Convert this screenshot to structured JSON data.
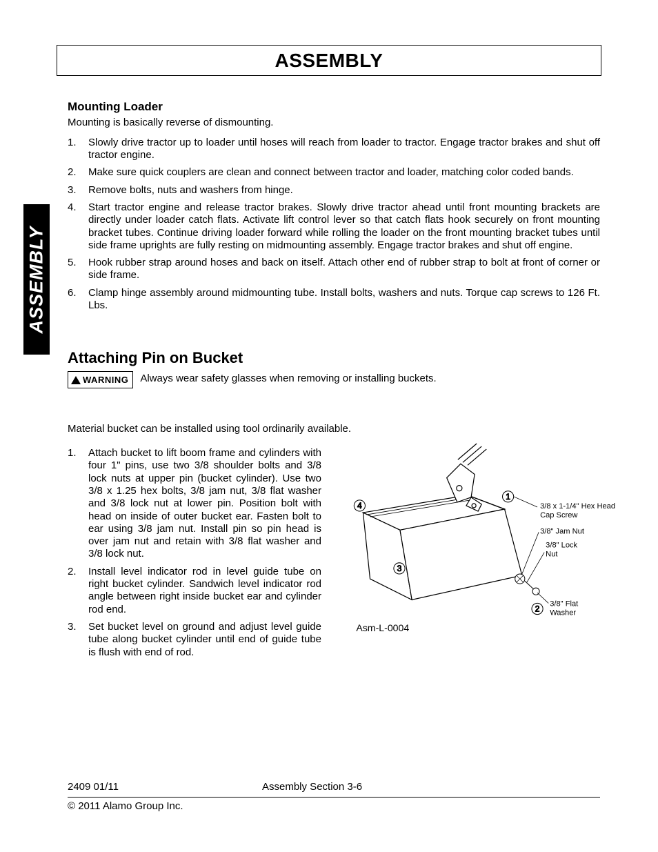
{
  "page_header": "ASSEMBLY",
  "side_tab": "ASSEMBLY",
  "section1": {
    "heading": "Mounting Loader",
    "intro": "Mounting is basically reverse of dismounting.",
    "items": [
      "Slowly drive tractor up to loader until hoses will reach from loader to tractor. Engage tractor brakes and shut off tractor engine.",
      "Make sure quick couplers are clean and connect between tractor and loader, matching color coded bands.",
      "Remove bolts, nuts and washers from hinge.",
      "Start tractor engine and release tractor brakes. Slowly drive tractor ahead until front mounting brackets are directly under loader catch flats. Activate lift control lever so that catch flats hook securely on front mounting bracket tubes. Continue driving loader forward while rolling the loader on the front mounting bracket tubes until side frame uprights are fully resting on midmounting assembly. Engage tractor brakes and shut off engine.",
      "Hook rubber strap around hoses and back on itself. Attach other end of rubber strap to bolt at front of corner or side frame.",
      "Clamp hinge assembly around midmounting tube. Install bolts, washers and nuts. Torque cap screws to 126 Ft. Lbs."
    ]
  },
  "section2": {
    "heading": "Attaching Pin on Bucket",
    "warning_label": "WARNING",
    "warning_msg": "Always wear safety glasses when removing or installing buckets.",
    "intro": "Material bucket can be installed using tool ordinarily available.",
    "items": [
      "Attach bucket to lift boom frame and cylinders with four 1\" pins, use two 3/8 shoulder bolts and 3/8 lock nuts at upper pin (bucket cylinder). Use two 3/8 x 1.25 hex bolts, 3/8 jam nut, 3/8 flat washer and 3/8 lock nut at lower pin. Position bolt with head on inside of outer bucket ear. Fasten bolt to ear using 3/8 jam nut. Install pin so pin head is over jam nut and retain with 3/8 flat washer and 3/8 lock nut.",
      "Install level indicator rod in level guide tube on right bucket cylinder. Sandwich level indicator rod angle between right inside bucket ear and cylinder rod end.",
      "Set bucket level on ground and adjust level guide tube along bucket cylinder until end of guide tube is flush with end of rod."
    ]
  },
  "diagram": {
    "id": "Asm-L-0004",
    "callouts": [
      "1",
      "2",
      "3",
      "4"
    ],
    "labels": [
      "3/8 x 1-1/4\" Hex Head Cap Screw",
      "3/8\" Jam Nut",
      "3/8\" Lock Nut",
      "3/8\" Flat Washer"
    ],
    "stroke": "#000000",
    "fill": "#ffffff",
    "font_size_label": 11,
    "font_size_id": 14
  },
  "footer": {
    "left": "2409   01/11",
    "center": "Assembly Section 3-6",
    "copyright": "© 2011 Alamo Group Inc."
  }
}
